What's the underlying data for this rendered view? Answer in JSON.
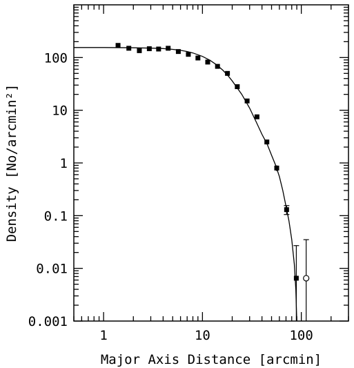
{
  "chart_data": {
    "type": "scatter",
    "title": "",
    "xlabel": "Major Axis Distance [arcmin]",
    "ylabel": "Density [No/arcmin²]",
    "xscale": "log",
    "yscale": "log",
    "xlim": [
      0.5,
      300
    ],
    "ylim": [
      0.001,
      1000
    ],
    "x_tick_labels": [
      {
        "value": 1,
        "label": "1"
      },
      {
        "value": 10,
        "label": "10"
      },
      {
        "value": 100,
        "label": "100"
      }
    ],
    "y_tick_labels": [
      {
        "value": 0.001,
        "label": "0.001"
      },
      {
        "value": 0.01,
        "label": "0.01"
      },
      {
        "value": 0.1,
        "label": "0.1"
      },
      {
        "value": 1,
        "label": "1"
      },
      {
        "value": 10,
        "label": "10"
      },
      {
        "value": 100,
        "label": "100"
      }
    ],
    "grid": false,
    "legend": "none",
    "series": [
      {
        "marker": "filled-square",
        "points": [
          {
            "x": 1.4,
            "y": 170,
            "err_low": 155,
            "err_high": 185
          },
          {
            "x": 1.8,
            "y": 150,
            "err_low": 140,
            "err_high": 162
          },
          {
            "x": 2.3,
            "y": 135,
            "err_low": 124,
            "err_high": 146
          },
          {
            "x": 2.9,
            "y": 147,
            "err_low": 137,
            "err_high": 158
          },
          {
            "x": 3.6,
            "y": 145,
            "err_low": 135,
            "err_high": 156
          },
          {
            "x": 4.5,
            "y": 150,
            "err_low": 140,
            "err_high": 161
          },
          {
            "x": 5.7,
            "y": 130,
            "err_low": 121,
            "err_high": 140
          },
          {
            "x": 7.2,
            "y": 115,
            "err_low": 107,
            "err_high": 124
          },
          {
            "x": 9.0,
            "y": 98,
            "err_low": 91,
            "err_high": 106
          },
          {
            "x": 11.3,
            "y": 82,
            "err_low": 76,
            "err_high": 88
          },
          {
            "x": 14.2,
            "y": 68,
            "err_low": 63,
            "err_high": 73
          },
          {
            "x": 17.9,
            "y": 50,
            "err_low": 46,
            "err_high": 54
          },
          {
            "x": 22.5,
            "y": 28,
            "err_low": 26,
            "err_high": 30
          },
          {
            "x": 28.3,
            "y": 15,
            "err_low": 13.8,
            "err_high": 16.2
          },
          {
            "x": 35.6,
            "y": 7.5,
            "err_low": 6.8,
            "err_high": 8.2
          },
          {
            "x": 44.8,
            "y": 2.5,
            "err_low": 2.25,
            "err_high": 2.75
          },
          {
            "x": 56.4,
            "y": 0.8,
            "err_low": 0.7,
            "err_high": 0.9
          },
          {
            "x": 71.0,
            "y": 0.13,
            "err_low": 0.105,
            "err_high": 0.155
          },
          {
            "x": 89.0,
            "y": 0.0065,
            "err_low": 0.001,
            "err_high": 0.027
          }
        ]
      },
      {
        "marker": "open-circle",
        "points": [
          {
            "x": 112,
            "y": 0.0065,
            "err_low": 0.001,
            "err_high": 0.035
          }
        ]
      }
    ],
    "fit_curve": {
      "style": "solid-line",
      "points": [
        {
          "x": 0.5,
          "y": 155
        },
        {
          "x": 1,
          "y": 155
        },
        {
          "x": 2,
          "y": 153
        },
        {
          "x": 3,
          "y": 151
        },
        {
          "x": 4,
          "y": 148
        },
        {
          "x": 5,
          "y": 143
        },
        {
          "x": 6,
          "y": 137
        },
        {
          "x": 7,
          "y": 130
        },
        {
          "x": 8,
          "y": 122
        },
        {
          "x": 10,
          "y": 105
        },
        {
          "x": 12,
          "y": 88
        },
        {
          "x": 14,
          "y": 72
        },
        {
          "x": 16,
          "y": 58
        },
        {
          "x": 18,
          "y": 46
        },
        {
          "x": 20,
          "y": 36
        },
        {
          "x": 25,
          "y": 20
        },
        {
          "x": 30,
          "y": 11
        },
        {
          "x": 35,
          "y": 6
        },
        {
          "x": 40,
          "y": 3.5
        },
        {
          "x": 45,
          "y": 2.3
        },
        {
          "x": 50,
          "y": 1.4
        },
        {
          "x": 55,
          "y": 0.9
        },
        {
          "x": 60,
          "y": 0.55
        },
        {
          "x": 65,
          "y": 0.3
        },
        {
          "x": 70,
          "y": 0.15
        },
        {
          "x": 75,
          "y": 0.08
        },
        {
          "x": 80,
          "y": 0.035
        },
        {
          "x": 85,
          "y": 0.012
        },
        {
          "x": 88,
          "y": 0.004
        },
        {
          "x": 90,
          "y": 0.001
        }
      ]
    }
  }
}
